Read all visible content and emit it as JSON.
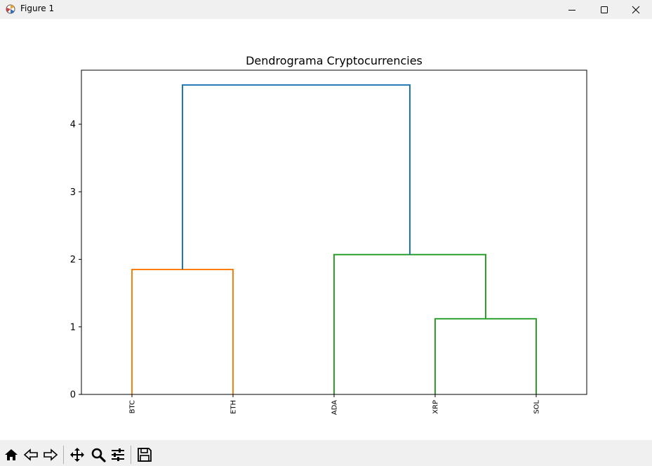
{
  "window": {
    "title": "Figure 1"
  },
  "toolbar": {
    "icons": [
      "home-icon",
      "back-icon",
      "forward-icon",
      "pan-icon",
      "zoom-icon",
      "configure-subplots-icon",
      "save-icon"
    ]
  },
  "colors": {
    "c1": "#ff7f0e",
    "c2": "#2ca02c",
    "above": "#1f77b4",
    "axis": "#000000"
  },
  "chart_data": {
    "type": "dendrogram",
    "title": "Dendrograma Cryptocurrencies",
    "xlabel": "",
    "ylabel": "",
    "leaves": [
      "BTC",
      "ETH",
      "ADA",
      "XRP",
      "SOL"
    ],
    "ylim": [
      0,
      4.8
    ],
    "yticks": [
      0,
      1,
      2,
      3,
      4
    ],
    "grid": false,
    "merges": [
      {
        "left": "BTC",
        "right": "ETH",
        "height": 1.85,
        "color": "#ff7f0e"
      },
      {
        "left": "XRP",
        "right": "SOL",
        "height": 1.12,
        "color": "#2ca02c"
      },
      {
        "left": "ADA",
        "right": "XRP+SOL",
        "height": 2.07,
        "color": "#2ca02c"
      },
      {
        "left": "BTC+ETH",
        "right": "ADA+XRP+SOL",
        "height": 4.58,
        "color": "#1f77b4"
      }
    ]
  }
}
